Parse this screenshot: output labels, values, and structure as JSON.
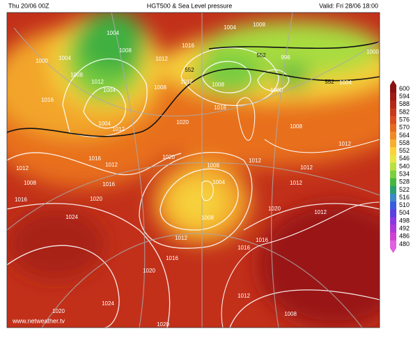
{
  "header": {
    "left": "Thu 20/06 00Z",
    "center": "HGT500 & Sea Level pressure",
    "right": "Valid: Fri 28/06 18:00"
  },
  "colorbar": {
    "ticks": [
      600,
      594,
      588,
      582,
      576,
      570,
      564,
      558,
      552,
      546,
      540,
      534,
      528,
      522,
      516,
      510,
      504,
      498,
      492,
      486,
      480
    ],
    "colors": [
      "#8b1010",
      "#a01a14",
      "#b52818",
      "#c9381c",
      "#d94d1f",
      "#e66a22",
      "#f08a26",
      "#f7ae2e",
      "#fad23a",
      "#e8e640",
      "#b8e040",
      "#7cd040",
      "#44b83c",
      "#2aa070",
      "#3c88c8",
      "#3a5ce0",
      "#5a40e0",
      "#8a38e0",
      "#b038d8",
      "#d040d0",
      "#e060e0"
    ]
  },
  "isobar_labels": [
    "1004",
    "1008",
    "1000",
    "1004",
    "1008",
    "1012",
    "1004",
    "1016",
    "1004",
    "1012",
    "1020",
    "1016",
    "1016",
    "1012",
    "1012",
    "1008",
    "1008",
    "1004",
    "1008",
    "996",
    "1000",
    "1004",
    "1000",
    "1008",
    "1012",
    "1012",
    "1012",
    "1008",
    "1004",
    "1008",
    "1012",
    "1016",
    "1020",
    "1016",
    "1016",
    "1020",
    "1024",
    "1024",
    "1020",
    "1016",
    "1012",
    "1016",
    "1012",
    "1008",
    "1016",
    "1020",
    "1020",
    "1012",
    "1008",
    "1020",
    "1012",
    "1012",
    "552",
    "552",
    "552"
  ],
  "watermark": "www.netweather.tv"
}
